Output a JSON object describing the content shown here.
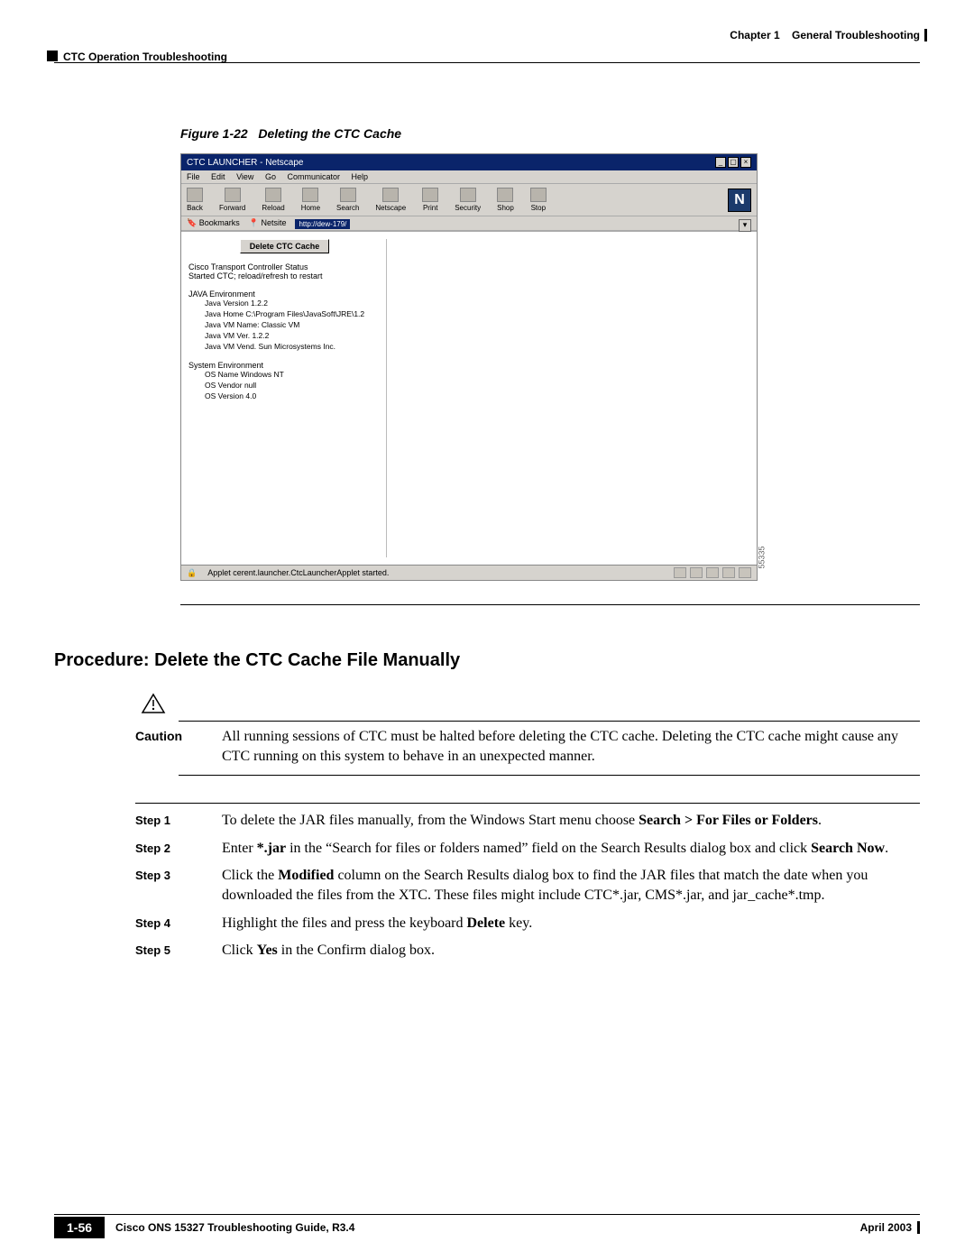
{
  "header": {
    "chapter": "Chapter 1",
    "chapter_title": "General Troubleshooting",
    "section": "CTC Operation Troubleshooting"
  },
  "figure": {
    "label": "Figure 1-22",
    "title": "Deleting the CTC Cache"
  },
  "screenshot": {
    "window_title": "CTC LAUNCHER - Netscape",
    "menus": [
      "File",
      "Edit",
      "View",
      "Go",
      "Communicator",
      "Help"
    ],
    "toolbar": [
      "Back",
      "Forward",
      "Reload",
      "Home",
      "Search",
      "Netscape",
      "Print",
      "Security",
      "Shop",
      "Stop"
    ],
    "bookmarks_label": "Bookmarks",
    "netsite_label": "Netsite",
    "url": "http://dew-179/",
    "delete_button": "Delete CTC Cache",
    "status_title": "Cisco Transport Controller Status",
    "status_line": "Started CTC; reload/refresh to restart",
    "java_env_label": "JAVA Environment",
    "java_env": [
      "Java Version 1.2.2",
      "Java Home C:\\Program Files\\JavaSoft\\JRE\\1.2",
      "Java VM Name: Classic VM",
      "Java VM Ver. 1.2.2",
      "Java VM Vend. Sun Microsystems Inc."
    ],
    "sys_env_label": "System Environment",
    "sys_env": [
      "OS Name Windows NT",
      "OS Vendor null",
      "OS Version 4.0"
    ],
    "statusbar_text": "Applet cerent.launcher.CtcLauncherApplet started.",
    "side_label": "55335",
    "colors": {
      "titlebar_bg": "#0a246a",
      "window_bg": "#d6d3ce",
      "content_bg": "#ffffff",
      "n_logo_bg": "#1b3a6b"
    }
  },
  "procedure_title": "Procedure: Delete the CTC Cache File Manually",
  "caution": {
    "label": "Caution",
    "text": "All running sessions of CTC must be halted before deleting the CTC cache. Deleting the CTC cache might cause any CTC running on this system to behave in an unexpected manner."
  },
  "steps": [
    {
      "label": "Step 1",
      "parts": [
        {
          "t": "To delete the JAR files manually, from the Windows Start menu choose "
        },
        {
          "t": "Search > For Files or Folders",
          "b": true
        },
        {
          "t": "."
        }
      ]
    },
    {
      "label": "Step 2",
      "parts": [
        {
          "t": "Enter "
        },
        {
          "t": "*.jar",
          "b": true
        },
        {
          "t": " in the “Search for files or folders named” field on the Search Results dialog box and click "
        },
        {
          "t": "Search Now",
          "b": true
        },
        {
          "t": "."
        }
      ]
    },
    {
      "label": "Step 3",
      "parts": [
        {
          "t": "Click the "
        },
        {
          "t": "Modified",
          "b": true
        },
        {
          "t": " column on the Search Results dialog box to find the JAR files that match the date when you downloaded the files from the XTC. These files might include CTC*.jar, CMS*.jar, and jar_cache*.tmp."
        }
      ]
    },
    {
      "label": "Step 4",
      "parts": [
        {
          "t": "Highlight the files and press the keyboard "
        },
        {
          "t": "Delete",
          "b": true
        },
        {
          "t": " key."
        }
      ]
    },
    {
      "label": "Step 5",
      "parts": [
        {
          "t": "Click "
        },
        {
          "t": "Yes",
          "b": true
        },
        {
          "t": " in the Confirm dialog box."
        }
      ]
    }
  ],
  "footer": {
    "guide": "Cisco ONS 15327 Troubleshooting Guide, R3.4",
    "page": "1-56",
    "date": "April 2003"
  }
}
